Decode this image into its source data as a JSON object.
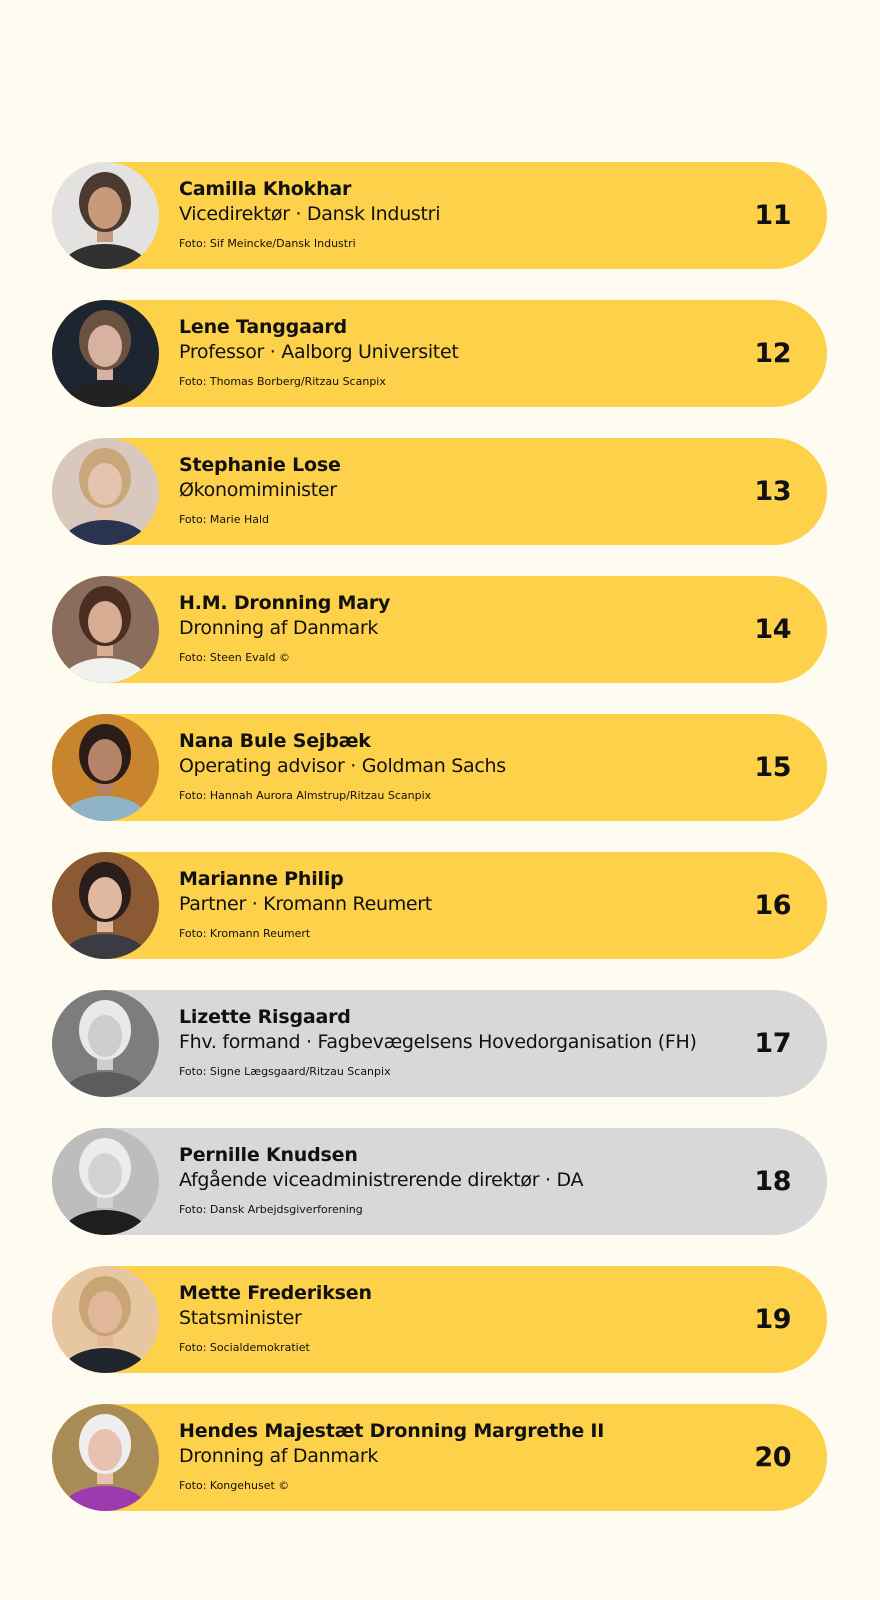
{
  "people": [
    {
      "name": "Camilla Khokhar",
      "role": "Vicedirektør · Dansk Industri",
      "credit": "Foto:  Sif Meincke/Dansk Industri",
      "rank": "11",
      "variant": "yellow",
      "photo": {
        "bg": "#e3e2e0",
        "skin": "#c89a7c",
        "hair": "#4a3a30",
        "cloth": "#303030"
      }
    },
    {
      "name": "Lene Tanggaard",
      "role": "Professor · Aalborg Universitet",
      "credit": "Foto: Thomas Borberg/Ritzau Scanpix",
      "rank": "12",
      "variant": "yellow",
      "photo": {
        "bg": "#1d2530",
        "skin": "#d7b2a0",
        "hair": "#6b5140",
        "cloth": "#222222"
      }
    },
    {
      "name": "Stephanie Lose",
      "role": "Økonomiminister",
      "credit": "Foto: Marie Hald",
      "rank": "13",
      "variant": "yellow",
      "photo": {
        "bg": "#d9c8bd",
        "skin": "#e6c3ae",
        "hair": "#c9a77a",
        "cloth": "#2a3350"
      }
    },
    {
      "name": "H.M. Dronning Mary",
      "role": "Dronning af Danmark",
      "credit": "Foto: Steen Evald ©",
      "rank": "14",
      "variant": "yellow",
      "photo": {
        "bg": "#8a6d5c",
        "skin": "#d8ad94",
        "hair": "#4a2e22",
        "cloth": "#f1f1ee"
      }
    },
    {
      "name": "Nana Bule Sejbæk",
      "role": "Operating advisor · Goldman Sachs",
      "credit": "Foto: Hannah Aurora Almstrup/Ritzau Scanpix",
      "rank": "15",
      "variant": "yellow",
      "photo": {
        "bg": "#c9852e",
        "skin": "#b58468",
        "hair": "#2a1d18",
        "cloth": "#8fb3c8"
      }
    },
    {
      "name": "Marianne Philip",
      "role": "Partner · Kromann Reumert",
      "credit": "Foto: Kromann Reumert",
      "rank": "16",
      "variant": "yellow",
      "photo": {
        "bg": "#8b5a35",
        "skin": "#e0b8a0",
        "hair": "#2b1d19",
        "cloth": "#3b3b44"
      }
    },
    {
      "name": "Lizette Risgaard",
      "role": "Fhv. formand · Fagbevægelsens Hovedorganisation (FH)",
      "credit": "Foto: Signe Lægsgaard/Ritzau Scanpix",
      "rank": "17",
      "variant": "grey",
      "photo": {
        "bg": "#7d7d7d",
        "skin": "#cdcdcd",
        "hair": "#e8e8e8",
        "cloth": "#5c5c5c"
      }
    },
    {
      "name": "Pernille Knudsen",
      "role": "Afgående viceadministrerende direktør · DA",
      "credit": "Foto: Dansk Arbejdsgiverforening",
      "rank": "18",
      "variant": "grey",
      "photo": {
        "bg": "#bdbdbd",
        "skin": "#d2d2d2",
        "hair": "#ececec",
        "cloth": "#1e1e1e"
      }
    },
    {
      "name": "Mette Frederiksen",
      "role": "Statsminister",
      "credit": "Foto: Socialdemokratiet",
      "rank": "19",
      "variant": "yellow",
      "photo": {
        "bg": "#e7c6a2",
        "skin": "#e2b89a",
        "hair": "#c9a576",
        "cloth": "#20242c"
      }
    },
    {
      "name": "Hendes Majestæt Dronning Margrethe II",
      "role": "Dronning af Danmark",
      "credit": "Foto: Kongehuset ©",
      "rank": "20",
      "variant": "yellow",
      "photo": {
        "bg": "#a98b55",
        "skin": "#e8c2b0",
        "hair": "#eeeeee",
        "cloth": "#9c3bb0"
      }
    }
  ]
}
